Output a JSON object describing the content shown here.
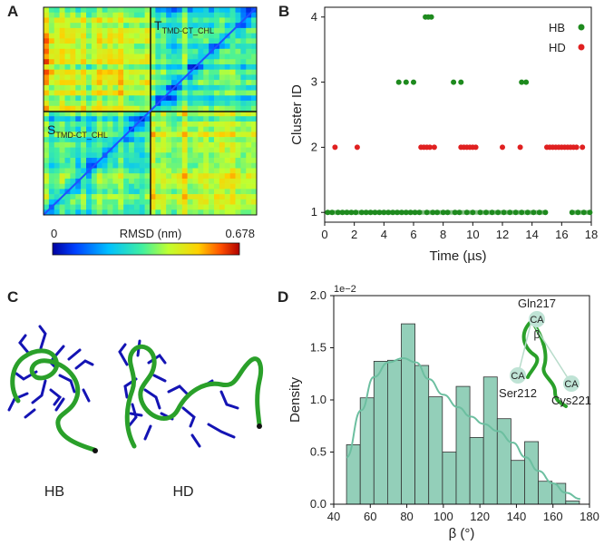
{
  "figure": {
    "panel_a": {
      "label": "A",
      "state_top": "T",
      "state_top_sub": "TMD-CT_CHL",
      "state_bottom": "S",
      "state_bottom_sub": "TMD-CT_CHL",
      "colorbar_min": "0",
      "colorbar_title": "RMSD (nm)",
      "colorbar_max": "0.678",
      "colors": {
        "low": "#0000d0",
        "mid": "#30e8b0",
        "high": "#d81010"
      }
    },
    "panel_b": {
      "label": "B"
    },
    "panel_c": {
      "label": "C",
      "structure_left": "HB",
      "structure_right": "HD",
      "colors": {
        "backbone": "#2aa02a",
        "sidechain": "#1010b0"
      }
    },
    "panel_d": {
      "label": "D",
      "inset": {
        "top": "Gln217",
        "ca_top": "CA",
        "angle": "β",
        "ca_left": "CA",
        "left": "Ser212",
        "ca_right": "CA",
        "right": "Cys221"
      },
      "colors": {
        "bar": "#93cfb9",
        "kde": "#6cbfa0"
      }
    }
  },
  "chart_data": [
    {
      "type": "scatter",
      "title": "",
      "xlabel": "Time (µs)",
      "ylabel": "Cluster ID",
      "xlim": [
        0,
        18
      ],
      "ylim": [
        0.85,
        4.15
      ],
      "xticks": [
        "0",
        "2",
        "4",
        "6",
        "8",
        "10",
        "12",
        "14",
        "16",
        "18"
      ],
      "yticks": [
        "1",
        "2",
        "3",
        "4"
      ],
      "legend": {
        "position": "top-right",
        "entries": [
          "HB",
          "HD"
        ]
      },
      "series": [
        {
          "name": "HB",
          "color": "#1e8a1e",
          "x": [
            6.8,
            7.0,
            7.2,
            5.0,
            5.5,
            6.0,
            8.7,
            9.2,
            13.3,
            13.6,
            0.2,
            0.5,
            0.9,
            1.2,
            1.5,
            1.8,
            2.1,
            2.5,
            2.8,
            3.1,
            3.4,
            3.7,
            4.0,
            4.3,
            4.6,
            4.9,
            5.2,
            5.5,
            5.8,
            6.1,
            6.4,
            6.9,
            7.3,
            7.6,
            8.0,
            8.3,
            8.8,
            9.1,
            9.6,
            10.0,
            10.5,
            10.9,
            11.3,
            11.7,
            12.1,
            12.5,
            12.9,
            13.3,
            13.7,
            14.1,
            14.5,
            14.9,
            16.7,
            17.1,
            17.5,
            17.9
          ],
          "y": [
            4,
            4,
            4,
            3,
            3,
            3,
            3,
            3,
            3,
            3,
            1,
            1,
            1,
            1,
            1,
            1,
            1,
            1,
            1,
            1,
            1,
            1,
            1,
            1,
            1,
            1,
            1,
            1,
            1,
            1,
            1,
            1,
            1,
            1,
            1,
            1,
            1,
            1,
            1,
            1,
            1,
            1,
            1,
            1,
            1,
            1,
            1,
            1,
            1,
            1,
            1,
            1,
            1,
            1,
            1,
            1
          ]
        },
        {
          "name": "HD",
          "color": "#e02020",
          "x": [
            0.7,
            2.2,
            6.5,
            6.7,
            6.9,
            7.1,
            7.4,
            9.2,
            9.4,
            9.6,
            9.8,
            10.0,
            10.2,
            12.0,
            13.2,
            15.0,
            15.2,
            15.4,
            15.6,
            15.8,
            16.0,
            16.2,
            16.4,
            16.6,
            16.8,
            17.0,
            17.4
          ],
          "y": [
            2,
            2,
            2,
            2,
            2,
            2,
            2,
            2,
            2,
            2,
            2,
            2,
            2,
            2,
            2,
            2,
            2,
            2,
            2,
            2,
            2,
            2,
            2,
            2,
            2,
            2,
            2
          ]
        }
      ]
    },
    {
      "type": "bar",
      "title": "",
      "xlabel": "β (°)",
      "ylabel": "Density",
      "y_scale_label": "1e−2",
      "xlim": [
        40,
        180
      ],
      "ylim": [
        0,
        2.0
      ],
      "xticks": [
        "40",
        "60",
        "80",
        "100",
        "120",
        "140",
        "160",
        "180"
      ],
      "yticks": [
        "0.0",
        "0.5",
        "1.0",
        "1.5",
        "2.0"
      ],
      "bin_edges": [
        47,
        54.5,
        62,
        69.5,
        77,
        84.5,
        92,
        99.5,
        107,
        114.5,
        122,
        129.5,
        137,
        144.5,
        152,
        159.5,
        167,
        174.5
      ],
      "values": [
        0.57,
        1.02,
        1.37,
        1.38,
        1.73,
        1.33,
        1.03,
        0.5,
        1.13,
        0.64,
        1.22,
        0.82,
        0.42,
        0.6,
        0.22,
        0.2,
        0.03
      ],
      "kde": {
        "x": [
          47,
          55,
          62,
          70,
          78,
          85,
          92,
          100,
          108,
          115,
          122,
          130,
          138,
          145,
          152,
          160,
          167,
          175
        ],
        "y": [
          0.45,
          0.9,
          1.22,
          1.36,
          1.4,
          1.36,
          1.2,
          1.05,
          0.93,
          0.84,
          0.77,
          0.7,
          0.59,
          0.45,
          0.32,
          0.2,
          0.11,
          0.05
        ]
      }
    }
  ]
}
